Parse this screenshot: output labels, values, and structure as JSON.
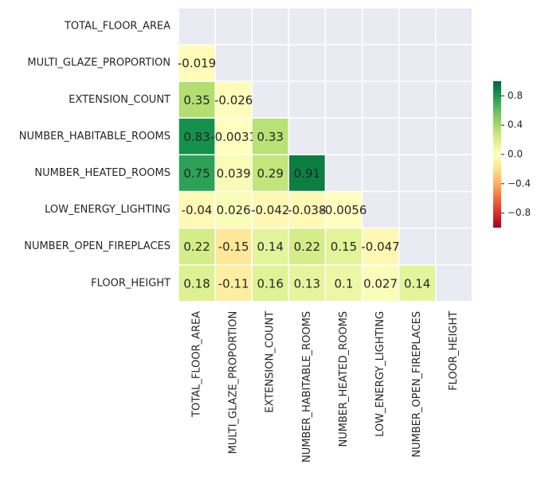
{
  "chart_data": {
    "type": "heatmap",
    "title": "",
    "variables": [
      "TOTAL_FLOOR_AREA",
      "MULTI_GLAZE_PROPORTION",
      "EXTENSION_COUNT",
      "NUMBER_HABITABLE_ROOMS",
      "NUMBER_HEATED_ROOMS",
      "LOW_ENERGY_LIGHTING",
      "NUMBER_OPEN_FIREPLACES",
      "FLOOR_HEIGHT"
    ],
    "mask": "upper-triangle-including-diagonal",
    "values": [
      [
        null,
        null,
        null,
        null,
        null,
        null,
        null,
        null
      ],
      [
        -0.019,
        null,
        null,
        null,
        null,
        null,
        null,
        null
      ],
      [
        0.35,
        -0.026,
        null,
        null,
        null,
        null,
        null,
        null
      ],
      [
        0.83,
        -0.0031,
        0.33,
        null,
        null,
        null,
        null,
        null
      ],
      [
        0.75,
        0.039,
        0.29,
        0.91,
        null,
        null,
        null,
        null
      ],
      [
        -0.04,
        0.026,
        -0.042,
        -0.038,
        -0.0056,
        null,
        null,
        null
      ],
      [
        0.22,
        -0.15,
        0.14,
        0.22,
        0.15,
        -0.047,
        null,
        null
      ],
      [
        0.18,
        -0.11,
        0.16,
        0.13,
        0.1,
        0.027,
        0.14,
        null
      ]
    ],
    "value_labels": [
      [],
      [
        "-0.019"
      ],
      [
        "0.35",
        "-0.026"
      ],
      [
        "0.83",
        "-0.0031",
        "0.33"
      ],
      [
        "0.75",
        "0.039",
        "0.29",
        "0.91"
      ],
      [
        "-0.04",
        "0.026",
        "-0.042",
        "-0.038",
        "-0.0056"
      ],
      [
        "0.22",
        "-0.15",
        "0.14",
        "0.22",
        "0.15",
        "-0.047"
      ],
      [
        "0.18",
        "-0.11",
        "0.16",
        "0.13",
        "0.1",
        "0.027",
        "0.14"
      ]
    ],
    "colormap": "RdYlGn",
    "color_range": [
      -1,
      1
    ],
    "colorbar": {
      "ticks": [
        0.8,
        0.4,
        0.0,
        -0.4,
        -0.8
      ],
      "tick_labels": [
        "0.8",
        "0.4",
        "0.0",
        "−0.4",
        "−0.8"
      ],
      "placement": "right"
    },
    "background_color": "#eaeaf2",
    "grid_line_color": "#ffffff"
  }
}
